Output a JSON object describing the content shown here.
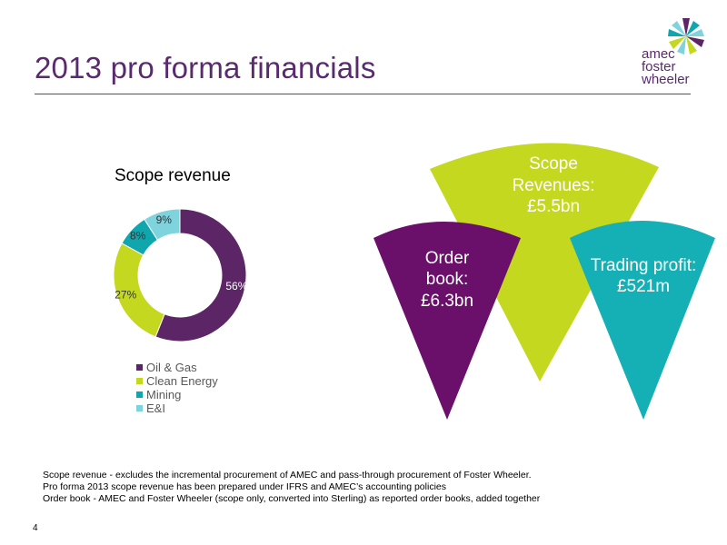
{
  "header": {
    "title": "2013 pro forma financials",
    "brand_lines": [
      "amec",
      "foster",
      "wheeler"
    ],
    "title_color": "#5a2a6e"
  },
  "chart_data": [
    {
      "type": "pie",
      "title": "Scope revenue",
      "categories": [
        "Oil & Gas",
        "Clean Energy",
        "Mining",
        "E&I"
      ],
      "values": [
        56,
        27,
        8,
        9
      ],
      "labels": [
        "56%",
        "27%",
        "8%",
        "9%"
      ],
      "colors": [
        "#5b2566",
        "#c4d820",
        "#0fa7ad",
        "#7fd3dc"
      ],
      "legend_position": "bottom"
    }
  ],
  "metrics": [
    {
      "id": "order-book",
      "lines": [
        "Order",
        "book:",
        "£6.3bn"
      ],
      "color": "#6a0f6a"
    },
    {
      "id": "scope-revenues",
      "lines": [
        "Scope",
        "Revenues:",
        "£5.5bn"
      ],
      "color": "#c4d820"
    },
    {
      "id": "trading-profit",
      "lines": [
        "Trading profit:",
        "£521m"
      ],
      "color": "#14b0b5"
    }
  ],
  "footnotes": [
    "Scope revenue - excludes the incremental procurement of AMEC and pass-through procurement of Foster Wheeler.",
    "Pro forma 2013 scope revenue has been prepared under IFRS and AMEC’s accounting policies",
    "Order book - AMEC and Foster Wheeler (scope only, converted into Sterling) as reported order books, added together"
  ],
  "page_number": "4"
}
